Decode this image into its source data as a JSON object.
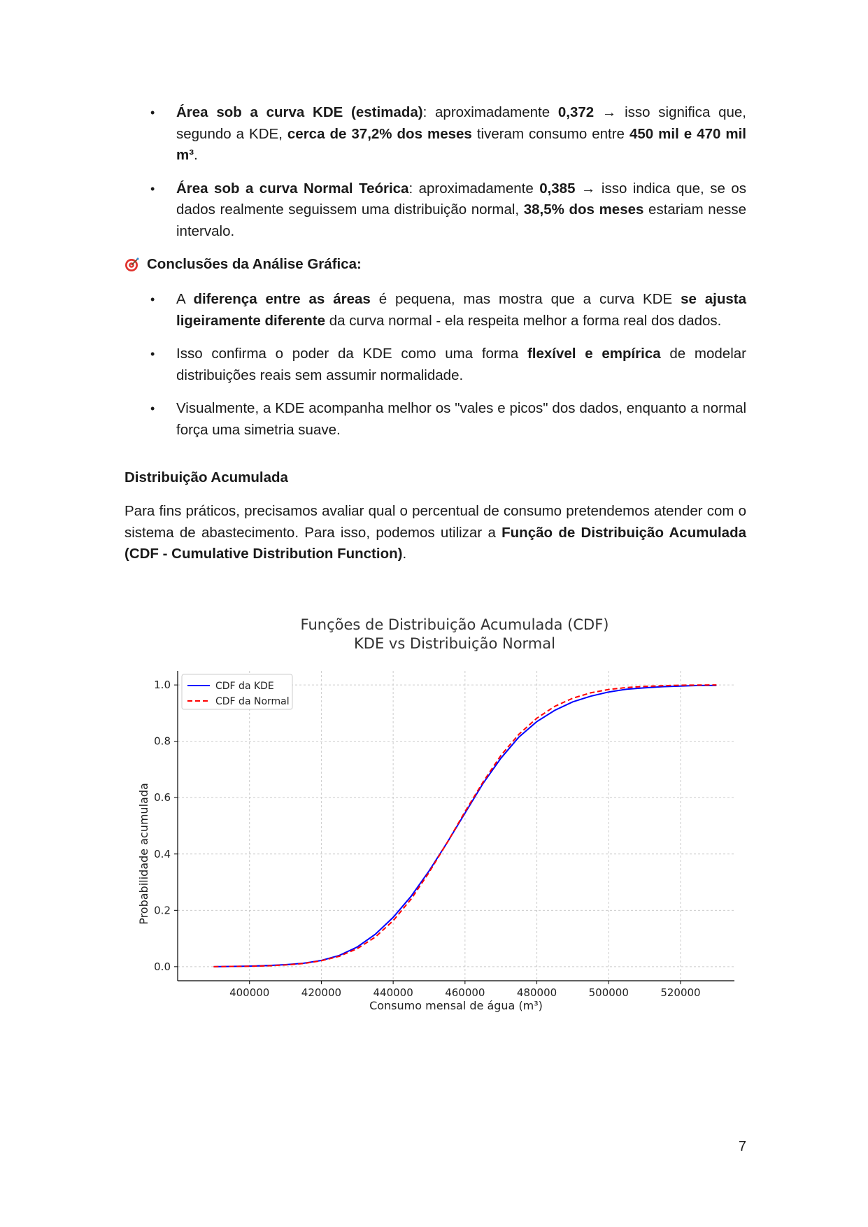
{
  "bullets_top": [
    {
      "parts": [
        {
          "t": "Área sob a curva KDE (estimada)",
          "b": true
        },
        {
          "t": ": aproximadamente ",
          "b": false
        },
        {
          "t": "0,372",
          "b": true
        },
        {
          "t": " → isso significa que, segundo a KDE, ",
          "b": false
        },
        {
          "t": "cerca de 37,2% dos meses",
          "b": true
        },
        {
          "t": " tiveram consumo entre ",
          "b": false
        },
        {
          "t": "450 mil e 470 mil m³",
          "b": true
        },
        {
          "t": ".",
          "b": false
        }
      ]
    },
    {
      "parts": [
        {
          "t": "Área sob a curva Normal Teórica",
          "b": true
        },
        {
          "t": ": aproximadamente ",
          "b": false
        },
        {
          "t": "0,385",
          "b": true
        },
        {
          "t": " → isso indica que, se os dados realmente seguissem uma distribuição normal, ",
          "b": false
        },
        {
          "t": "38,5% dos meses",
          "b": true
        },
        {
          "t": " estariam nesse intervalo.",
          "b": false
        }
      ]
    }
  ],
  "conclusions_heading": "Conclusões da Análise Gráfica:",
  "conclusions_icon": "target-icon",
  "bullets_conclusions": [
    {
      "parts": [
        {
          "t": "A ",
          "b": false
        },
        {
          "t": "diferença entre as áreas",
          "b": true
        },
        {
          "t": " é pequena, mas mostra que a curva KDE ",
          "b": false
        },
        {
          "t": "se ajusta ligeiramente diferente",
          "b": true
        },
        {
          "t": " da curva normal - ela respeita melhor a forma real dos dados.",
          "b": false
        }
      ]
    },
    {
      "parts": [
        {
          "t": "Isso confirma o poder da KDE como uma forma ",
          "b": false
        },
        {
          "t": "flexível e empírica",
          "b": true
        },
        {
          "t": " de modelar distribuições reais sem assumir normalidade.",
          "b": false
        }
      ]
    },
    {
      "parts": [
        {
          "t": "Visualmente, a KDE acompanha melhor os \"vales e picos\" dos dados, enquanto a normal força uma simetria suave.",
          "b": false
        }
      ]
    }
  ],
  "section_title": "Distribuição Acumulada",
  "paragraph": [
    {
      "t": "Para fins práticos, precisamos avaliar qual o percentual de consumo pretendemos atender com o sistema de abastecimento. Para isso, podemos utilizar a ",
      "b": false
    },
    {
      "t": "Função de Distribuição Acumulada (CDF - Cumulative Distribution Function)",
      "b": true
    },
    {
      "t": ".",
      "b": false
    }
  ],
  "page_number": "7",
  "chart_data": {
    "type": "line",
    "title": "Funções de Distribuição Acumulada (CDF)",
    "subtitle": "KDE vs Distribuição Normal",
    "xlabel": "Consumo mensal de água (m³)",
    "ylabel": "Probabilidade acumulada",
    "xlim": [
      380000,
      535000
    ],
    "ylim": [
      -0.05,
      1.05
    ],
    "xticks": [
      400000,
      420000,
      440000,
      460000,
      480000,
      500000,
      520000
    ],
    "yticks": [
      0.0,
      0.2,
      0.4,
      0.6,
      0.8,
      1.0
    ],
    "ytick_labels": [
      "0.0",
      "0.2",
      "0.4",
      "0.6",
      "0.8",
      "1.0"
    ],
    "grid": true,
    "legend_position": "top-left",
    "series": [
      {
        "name": "CDF da KDE",
        "color": "#0000ff",
        "style": "solid",
        "x": [
          390000,
          395000,
          400000,
          405000,
          410000,
          415000,
          420000,
          425000,
          430000,
          435000,
          440000,
          445000,
          450000,
          455000,
          460000,
          465000,
          470000,
          475000,
          480000,
          485000,
          490000,
          495000,
          500000,
          505000,
          510000,
          515000,
          520000,
          525000,
          530000
        ],
        "y": [
          0.0,
          0.001,
          0.002,
          0.004,
          0.007,
          0.012,
          0.022,
          0.04,
          0.07,
          0.115,
          0.175,
          0.25,
          0.34,
          0.44,
          0.545,
          0.65,
          0.74,
          0.815,
          0.87,
          0.91,
          0.94,
          0.96,
          0.975,
          0.985,
          0.99,
          0.994,
          0.996,
          0.998,
          0.998
        ]
      },
      {
        "name": "CDF da Normal",
        "color": "#ff0000",
        "style": "dashed",
        "x": [
          390000,
          395000,
          400000,
          405000,
          410000,
          415000,
          420000,
          425000,
          430000,
          435000,
          440000,
          445000,
          450000,
          455000,
          460000,
          465000,
          470000,
          475000,
          480000,
          485000,
          490000,
          495000,
          500000,
          505000,
          510000,
          515000,
          520000,
          525000,
          530000
        ],
        "y": [
          0.0,
          0.0008,
          0.0015,
          0.003,
          0.006,
          0.011,
          0.021,
          0.037,
          0.064,
          0.105,
          0.163,
          0.24,
          0.335,
          0.44,
          0.55,
          0.655,
          0.75,
          0.825,
          0.882,
          0.924,
          0.953,
          0.972,
          0.984,
          0.991,
          0.995,
          0.997,
          0.999,
          0.9995,
          1.0
        ]
      }
    ]
  }
}
